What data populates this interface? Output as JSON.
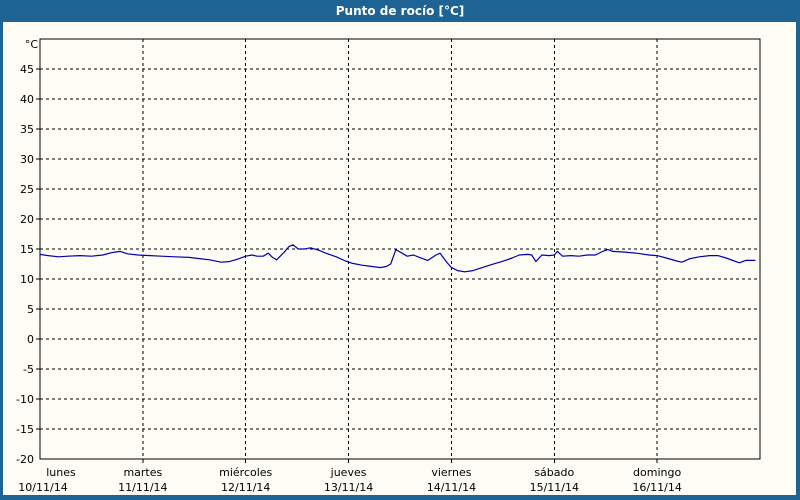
{
  "window": {
    "title": "Punto de rocío [°C]",
    "title_bar_color": "#1d6394",
    "frame_color": "#1d6394",
    "background_color": "#fdfdf6"
  },
  "chart_data": {
    "type": "line",
    "title": "Punto de rocío [°C]",
    "y_unit_label": "°C",
    "ylim": [
      -20,
      50
    ],
    "y_tick_step": 5,
    "y_tick_labels": [
      "45",
      "40",
      "35",
      "30",
      "25",
      "20",
      "15",
      "10",
      "5",
      "0",
      "-5",
      "-10",
      "-15",
      "-20"
    ],
    "grid": "dashed",
    "legend_position": "none",
    "x_days": [
      {
        "name": "lunes",
        "date": "10/11/14"
      },
      {
        "name": "martes",
        "date": "11/11/14"
      },
      {
        "name": "miércoles",
        "date": "12/11/14"
      },
      {
        "name": "jueves",
        "date": "13/11/14"
      },
      {
        "name": "viernes",
        "date": "14/11/14"
      },
      {
        "name": "sábado",
        "date": "15/11/14"
      },
      {
        "name": "domingo",
        "date": "16/11/14"
      }
    ],
    "series": [
      {
        "name": "Punto de rocío",
        "color": "#0000b0",
        "x_unit": "days_since_start",
        "points": [
          [
            0.0,
            14.1
          ],
          [
            0.08,
            13.9
          ],
          [
            0.18,
            13.7
          ],
          [
            0.27,
            13.8
          ],
          [
            0.39,
            13.9
          ],
          [
            0.5,
            13.8
          ],
          [
            0.61,
            14.0
          ],
          [
            0.7,
            14.4
          ],
          [
            0.78,
            14.6
          ],
          [
            0.85,
            14.2
          ],
          [
            0.95,
            14.0
          ],
          [
            1.07,
            13.9
          ],
          [
            1.18,
            13.8
          ],
          [
            1.31,
            13.7
          ],
          [
            1.45,
            13.6
          ],
          [
            1.55,
            13.4
          ],
          [
            1.65,
            13.2
          ],
          [
            1.76,
            12.8
          ],
          [
            1.84,
            12.9
          ],
          [
            1.92,
            13.3
          ],
          [
            2.0,
            13.8
          ],
          [
            2.06,
            14.0
          ],
          [
            2.11,
            13.8
          ],
          [
            2.17,
            13.8
          ],
          [
            2.22,
            14.3
          ],
          [
            2.26,
            13.6
          ],
          [
            2.3,
            13.2
          ],
          [
            2.37,
            14.4
          ],
          [
            2.42,
            15.4
          ],
          [
            2.46,
            15.7
          ],
          [
            2.51,
            15.0
          ],
          [
            2.57,
            15.0
          ],
          [
            2.63,
            15.2
          ],
          [
            2.71,
            14.8
          ],
          [
            2.78,
            14.3
          ],
          [
            2.88,
            13.7
          ],
          [
            2.97,
            13.0
          ],
          [
            3.04,
            12.6
          ],
          [
            3.13,
            12.3
          ],
          [
            3.22,
            12.1
          ],
          [
            3.31,
            11.9
          ],
          [
            3.37,
            12.1
          ],
          [
            3.41,
            12.5
          ],
          [
            3.46,
            14.9
          ],
          [
            3.52,
            14.3
          ],
          [
            3.57,
            13.8
          ],
          [
            3.63,
            14.0
          ],
          [
            3.69,
            13.6
          ],
          [
            3.77,
            13.1
          ],
          [
            3.85,
            14.0
          ],
          [
            3.89,
            14.3
          ],
          [
            3.95,
            12.9
          ],
          [
            4.0,
            11.9
          ],
          [
            4.06,
            11.4
          ],
          [
            4.13,
            11.2
          ],
          [
            4.21,
            11.4
          ],
          [
            4.3,
            11.9
          ],
          [
            4.39,
            12.4
          ],
          [
            4.49,
            12.9
          ],
          [
            4.59,
            13.5
          ],
          [
            4.66,
            14.0
          ],
          [
            4.74,
            14.1
          ],
          [
            4.78,
            14.0
          ],
          [
            4.82,
            12.9
          ],
          [
            4.88,
            14.0
          ],
          [
            4.95,
            13.9
          ],
          [
            5.0,
            14.0
          ],
          [
            5.03,
            14.6
          ],
          [
            5.08,
            13.8
          ],
          [
            5.16,
            13.9
          ],
          [
            5.24,
            13.8
          ],
          [
            5.32,
            14.0
          ],
          [
            5.4,
            14.0
          ],
          [
            5.47,
            14.6
          ],
          [
            5.52,
            14.9
          ],
          [
            5.57,
            14.6
          ],
          [
            5.67,
            14.5
          ],
          [
            5.8,
            14.3
          ],
          [
            5.92,
            14.0
          ],
          [
            6.0,
            13.9
          ],
          [
            6.09,
            13.5
          ],
          [
            6.19,
            13.0
          ],
          [
            6.24,
            12.8
          ],
          [
            6.32,
            13.4
          ],
          [
            6.41,
            13.7
          ],
          [
            6.51,
            13.9
          ],
          [
            6.59,
            13.9
          ],
          [
            6.67,
            13.5
          ],
          [
            6.75,
            13.0
          ],
          [
            6.8,
            12.7
          ],
          [
            6.86,
            13.1
          ],
          [
            6.92,
            13.1
          ],
          [
            6.95,
            13.1
          ]
        ]
      }
    ]
  }
}
